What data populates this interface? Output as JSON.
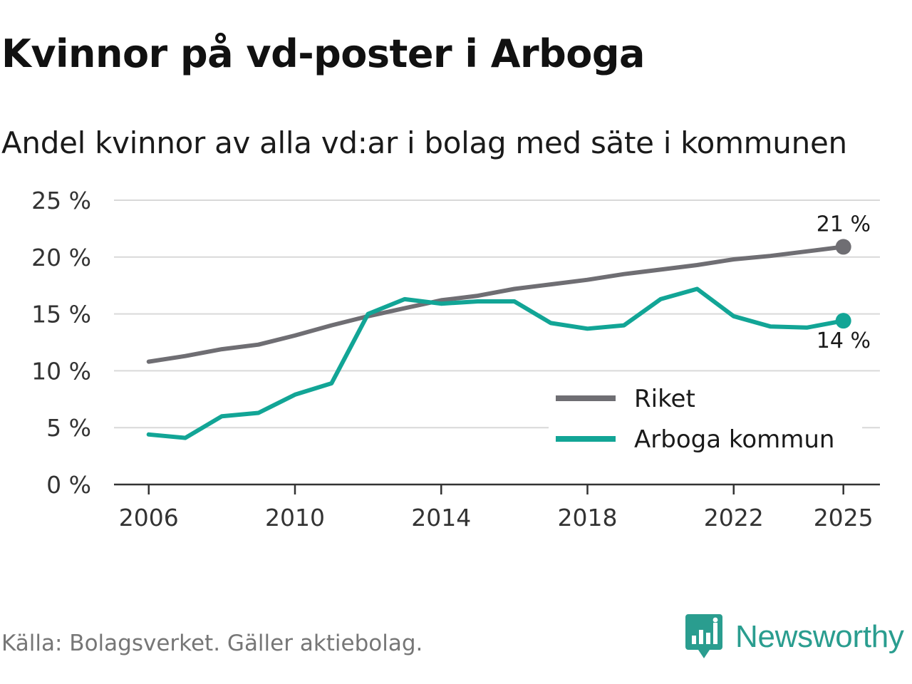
{
  "title": "Kvinnor på vd-poster i Arboga",
  "subtitle": "Andel kvinnor av alla vd:ar i bolag med säte i kommunen",
  "source": "Källa: Bolagsverket. Gäller aktiebolag.",
  "brand": {
    "name": "Newsworthy",
    "icon": "newsworthy-logo-icon"
  },
  "colors": {
    "riket": "#6f6e73",
    "arboga": "#12a596",
    "grid": "#d9d9d9",
    "axis": "#333333"
  },
  "chart_data": {
    "type": "line",
    "title": "Kvinnor på vd-poster i Arboga",
    "xlabel": "",
    "ylabel": "",
    "x": [
      2006,
      2007,
      2008,
      2009,
      2010,
      2011,
      2012,
      2013,
      2014,
      2015,
      2016,
      2017,
      2018,
      2019,
      2020,
      2021,
      2022,
      2023,
      2024,
      2025
    ],
    "xticks": [
      "2006",
      "2010",
      "2014",
      "2018",
      "2022",
      "2025"
    ],
    "xtick_values": [
      2006,
      2010,
      2014,
      2018,
      2022,
      2025
    ],
    "xlim": [
      2005.05,
      2026
    ],
    "yticks": [
      "0 %",
      "5 %",
      "10 %",
      "15 %",
      "20 %",
      "25 %"
    ],
    "ytick_values": [
      0,
      5,
      10,
      15,
      20,
      25
    ],
    "ylim": [
      0,
      25
    ],
    "legend_position": "bottom-right",
    "series": [
      {
        "name": "Riket",
        "color": "#6f6e73",
        "values": [
          10.8,
          11.3,
          11.9,
          12.3,
          13.1,
          14.0,
          14.8,
          15.5,
          16.2,
          16.6,
          17.2,
          17.6,
          18.0,
          18.5,
          18.9,
          19.3,
          19.8,
          20.1,
          20.5,
          20.9
        ],
        "end_label": "21 %"
      },
      {
        "name": "Arboga kommun",
        "color": "#12a596",
        "values": [
          4.4,
          4.1,
          6.0,
          6.3,
          7.9,
          8.9,
          15.0,
          16.3,
          15.9,
          16.1,
          16.1,
          14.2,
          13.7,
          14.0,
          16.3,
          17.2,
          14.8,
          13.9,
          13.8,
          14.4
        ],
        "end_label": "14 %"
      }
    ]
  }
}
